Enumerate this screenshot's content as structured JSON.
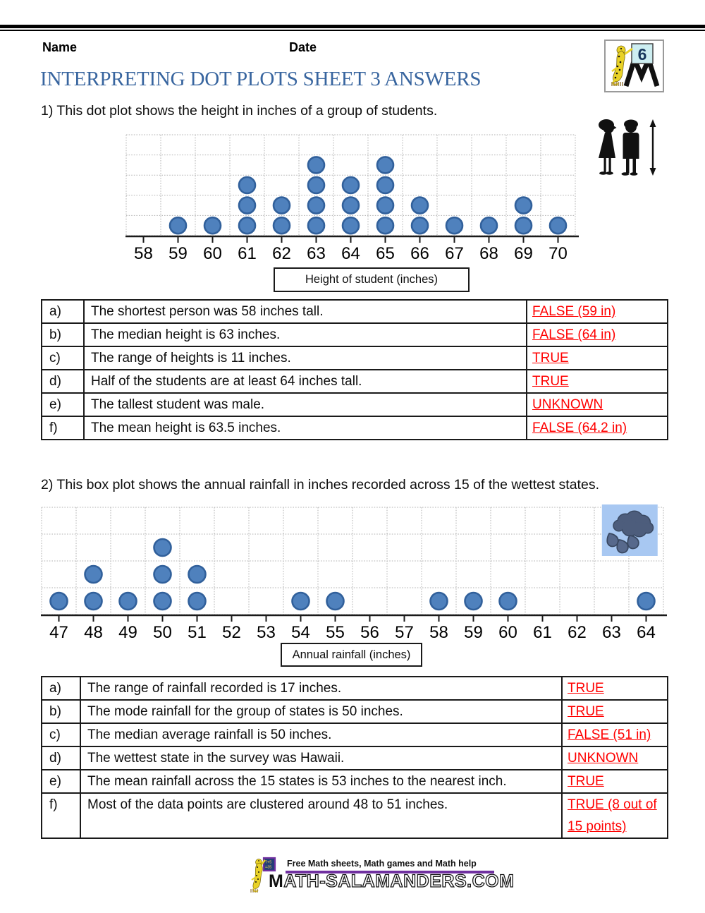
{
  "header": {
    "name_label": "Name",
    "date_label": "Date",
    "logo_grade": "6"
  },
  "title": "INTERPRETING DOT PLOTS SHEET 3 ANSWERS",
  "questions": [
    {
      "intro": "1) This dot plot shows the height in inches of a group of students."
    },
    {
      "intro": "2) This box plot shows the annual rainfall in inches recorded across 15 of the wettest states."
    }
  ],
  "chart_data": [
    {
      "type": "dot_plot",
      "title": "Height of student (inches)",
      "xlabel": "Height of student (inches)",
      "categories": [
        58,
        59,
        60,
        61,
        62,
        63,
        64,
        65,
        66,
        67,
        68,
        69,
        70
      ],
      "values": [
        0,
        1,
        1,
        3,
        2,
        4,
        3,
        4,
        2,
        1,
        1,
        2,
        1
      ],
      "total_points": 25,
      "grid_rows": 5,
      "grid": true,
      "dot_fill": "#4f81bd",
      "dot_stroke": "#31609b",
      "decoration": "children-height-illustration"
    },
    {
      "type": "dot_plot",
      "title": "Annual rainfall (inches)",
      "xlabel": "Annual rainfall (inches)",
      "categories": [
        47,
        48,
        49,
        50,
        51,
        52,
        53,
        54,
        55,
        56,
        57,
        58,
        59,
        60,
        61,
        62,
        63,
        64
      ],
      "values": [
        1,
        2,
        1,
        3,
        2,
        0,
        0,
        1,
        1,
        0,
        0,
        1,
        1,
        1,
        0,
        0,
        0,
        1
      ],
      "total_points": 15,
      "grid_rows": 4,
      "grid": true,
      "dot_fill": "#4f81bd",
      "dot_stroke": "#31609b",
      "decoration": "rain-cloud-illustration"
    }
  ],
  "tables": [
    {
      "rows": [
        {
          "letter": "a)",
          "statement": "The shortest person was 58 inches tall.",
          "answer": "FALSE (59 in)"
        },
        {
          "letter": "b)",
          "statement": "The median height is 63 inches.",
          "answer": "FALSE (64 in)"
        },
        {
          "letter": "c)",
          "statement": "The range of heights is 11 inches.",
          "answer": "TRUE"
        },
        {
          "letter": "d)",
          "statement": "Half of the students are at least 64 inches tall.",
          "answer": "TRUE"
        },
        {
          "letter": "e)",
          "statement": "The tallest student was male.",
          "answer": "UNKNOWN"
        },
        {
          "letter": "f)",
          "statement": "The mean height is 63.5 inches.",
          "answer": "FALSE (64.2 in)"
        }
      ]
    },
    {
      "rows": [
        {
          "letter": "a)",
          "statement": "The range of rainfall recorded is 17 inches.",
          "answer": "TRUE"
        },
        {
          "letter": "b)",
          "statement": "The mode rainfall for the group of states is 50 inches.",
          "answer": "TRUE"
        },
        {
          "letter": "c)",
          "statement": "The median average rainfall is 50 inches.",
          "answer": "FALSE (51 in)"
        },
        {
          "letter": "d)",
          "statement": "The wettest state in the survey was Hawaii.",
          "answer": "UNKNOWN"
        },
        {
          "letter": "e)",
          "statement": "The mean rainfall across the 15 states is 53 inches to the nearest inch.",
          "answer": "TRUE"
        },
        {
          "letter": "f)",
          "statement": "Most of the data points are clustered around 48 to 51 inches.",
          "answer": "TRUE (8 out of 15 points)"
        }
      ]
    }
  ],
  "footer": {
    "tagline": "Free Math sheets, Math games and Math help",
    "site_initial": "M",
    "site_rest": "ATH-SALAMANDERS.COM",
    "board_line1": "7+5",
    "board_line2": "=35"
  },
  "colors": {
    "answer_red": "#ff0000",
    "title_blue": "#38659f",
    "dot_fill": "#4f81bd",
    "dot_stroke": "#31609b",
    "footer_purple": "#7030a0",
    "cloud_panel_blue": "#a8c8f2",
    "cloud_gray_blue": "#4d5d7c"
  }
}
